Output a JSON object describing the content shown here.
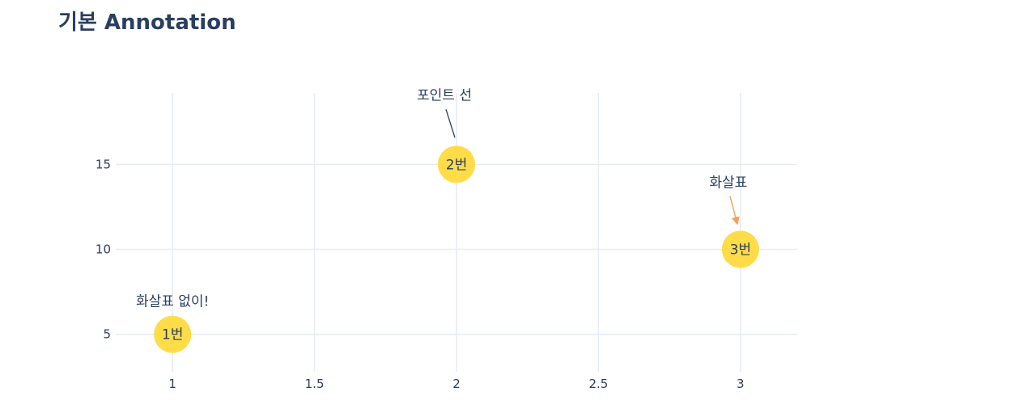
{
  "chart_data": {
    "type": "scatter",
    "title": "기본 Annotation",
    "xlabel": "",
    "ylabel": "",
    "xlim": [
      0.8,
      3.2
    ],
    "ylim": [
      2.8,
      19.2
    ],
    "x_ticks": [
      1,
      1.5,
      2,
      2.5,
      3
    ],
    "x_tick_labels": [
      "1",
      "1.5",
      "2",
      "2.5",
      "3"
    ],
    "y_ticks": [
      5,
      10,
      15
    ],
    "y_tick_labels": [
      "5",
      "10",
      "15"
    ],
    "grid": true,
    "legend": "none",
    "points": [
      {
        "x": 1,
        "y": 5,
        "label": "1번"
      },
      {
        "x": 2,
        "y": 15,
        "label": "2번"
      },
      {
        "x": 3,
        "y": 10,
        "label": "3번"
      }
    ],
    "marker_color": "#ffdc48",
    "annotations": [
      {
        "text": "화살표 없이!",
        "x": 1,
        "y": 5,
        "arrow": "none"
      },
      {
        "text": "포인트 선",
        "x": 2,
        "y": 15,
        "arrow": "line",
        "color": "#2a3f5f"
      },
      {
        "text": "화살표",
        "x": 3,
        "y": 10,
        "arrow": "arrowhead",
        "color": "#f5a05a"
      }
    ]
  }
}
